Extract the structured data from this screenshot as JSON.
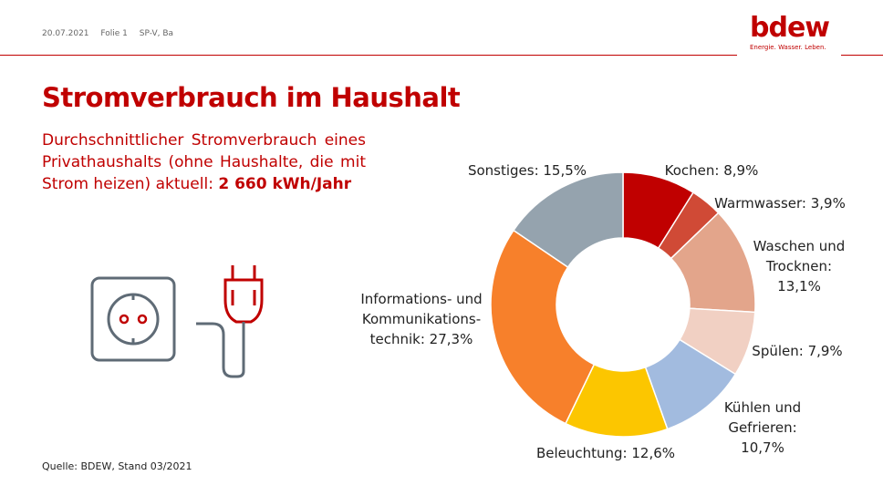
{
  "header": {
    "date": "20.07.2021",
    "slide": "Folie 1",
    "author": "SP-V, Ba"
  },
  "logo": {
    "word": "bdew",
    "tagline": "Energie. Wasser. Leben."
  },
  "title": "Stromverbrauch im Haushalt",
  "subtitle": {
    "text": "Durchschnittlicher Stromverbrauch eines Privathaushalts (ohne Haushalte, die mit Strom heizen) aktuell: ",
    "highlight": "2 660 kWh/Jahr"
  },
  "source": "Quelle: BDEW, Stand 03/2021",
  "icons": [
    "socket-icon",
    "plug-icon"
  ],
  "chart_data": {
    "type": "pie",
    "donut": true,
    "unit": "%",
    "slices": [
      {
        "label": "Kochen",
        "value": 8.9,
        "color": "#c00000",
        "label_lines": [
          "Kochen: 8,9%"
        ]
      },
      {
        "label": "Warmwasser",
        "value": 3.9,
        "color": "#d04a36",
        "label_lines": [
          "Warmwasser: 3,9%"
        ]
      },
      {
        "label": "Waschen und Trocknen",
        "value": 13.1,
        "color": "#e3a58b",
        "label_lines": [
          "Waschen und",
          "Trocknen:",
          "13,1%"
        ]
      },
      {
        "label": "Spülen",
        "value": 7.9,
        "color": "#f1d0c3",
        "label_lines": [
          "Spülen: 7,9%"
        ]
      },
      {
        "label": "Kühlen und Gefrieren",
        "value": 10.7,
        "color": "#a2bbdf",
        "label_lines": [
          "Kühlen und",
          "Gefrieren:",
          "10,7%"
        ]
      },
      {
        "label": "Beleuchtung",
        "value": 12.6,
        "color": "#fcc600",
        "label_lines": [
          "Beleuchtung: 12,6%"
        ]
      },
      {
        "label": "Informations- und Kommunikationstechnik",
        "value": 27.3,
        "color": "#f7802b",
        "label_lines": [
          "Informations- und",
          "Kommunikations-",
          "technik: 27,3%"
        ]
      },
      {
        "label": "Sonstiges",
        "value": 15.5,
        "color": "#95a3ae",
        "label_lines": [
          "Sonstiges: 15,5%"
        ]
      }
    ]
  }
}
